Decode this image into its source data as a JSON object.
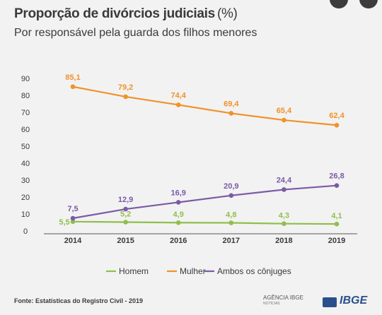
{
  "header": {
    "title": "Proporção de divórcios judiciais",
    "title_unit": "(%)",
    "subtitle": "Por responsável pela guarda dos filhos menores"
  },
  "chart_data": {
    "type": "line",
    "title": "Proporção de divórcios judiciais (%)",
    "subtitle": "Por responsável pela guarda dos filhos menores",
    "x": [
      "2014",
      "2015",
      "2016",
      "2017",
      "2018",
      "2019"
    ],
    "ylim": [
      0,
      90
    ],
    "yticks": [
      0,
      10,
      20,
      30,
      40,
      50,
      60,
      70,
      80,
      90
    ],
    "grid": false,
    "legend_position": "bottom",
    "series": [
      {
        "name": "Homem",
        "color": "#8fbf4d",
        "values": [
          5.5,
          5.2,
          4.9,
          4.8,
          4.3,
          4.1
        ],
        "labels": [
          "5,5",
          "5,2",
          "4,9",
          "4,8",
          "4,3",
          "4,1"
        ]
      },
      {
        "name": "Mulher",
        "color": "#f0922a",
        "values": [
          85.1,
          79.2,
          74.4,
          69.4,
          65.4,
          62.4
        ],
        "labels": [
          "85,1",
          "79,2",
          "74,4",
          "69,4",
          "65,4",
          "62,4"
        ]
      },
      {
        "name": "Ambos os cônjuges",
        "color": "#7b5aa6",
        "values": [
          7.5,
          12.9,
          16.9,
          20.9,
          24.4,
          26.8
        ],
        "labels": [
          "7,5",
          "12,9",
          "16,9",
          "20,9",
          "24,4",
          "26,8"
        ]
      }
    ]
  },
  "footer": {
    "source": "Fonte: Estatísticas do Registro Civil - 2019",
    "agency": "AGÊNCIA IBGE",
    "agency_sub": "NOTÍCIAS",
    "logo": "IBGE"
  }
}
